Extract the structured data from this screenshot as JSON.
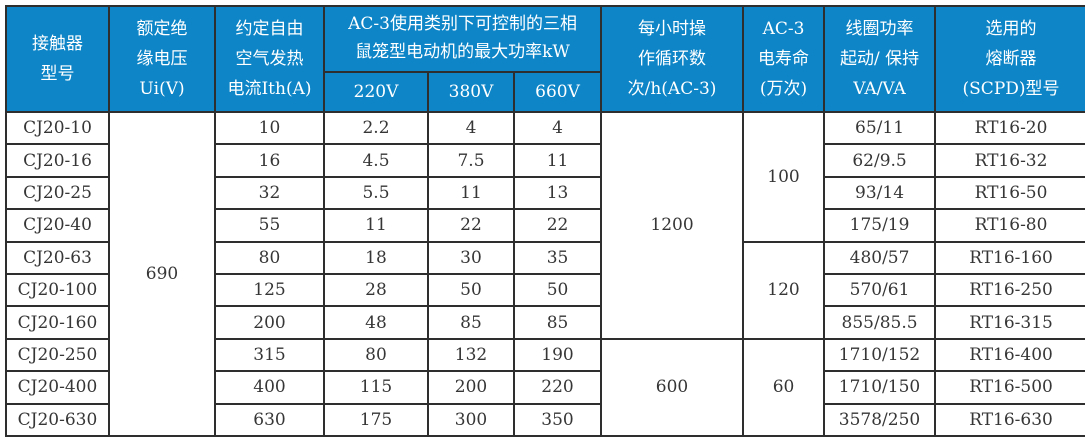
{
  "table": {
    "colors": {
      "header_bg": "#0d85c7",
      "header_text": "#ffffff",
      "body_text": "#363636",
      "border": "#2e2e2e"
    },
    "header": {
      "model": {
        "lines": [
          "接触器",
          "型号"
        ]
      },
      "ui_voltage": {
        "lines": [
          "额定绝",
          "缘电压",
          "Ui(V)"
        ]
      },
      "thermal_current": {
        "lines": [
          "约定自由",
          "空气发热",
          "电流Ith(A)"
        ]
      },
      "ac3_power_group": {
        "lines": [
          "AC-3使用类别下可控制的三相",
          "鼠笼型电动机的最大功率kW"
        ]
      },
      "voltages": [
        "220V",
        "380V",
        "660V"
      ],
      "cycles": {
        "lines": [
          "每小时操",
          "作循环数",
          "次/h(AC-3)"
        ]
      },
      "life": {
        "lines": [
          "AC-3",
          "电寿命",
          "(万次)"
        ]
      },
      "coil_power": {
        "lines": [
          "线圈功率",
          "起动/ 保持",
          "VA/VA"
        ]
      },
      "fuse": {
        "lines": [
          "选用的",
          "熔断器",
          "(SCPD)型号"
        ]
      }
    },
    "merged": {
      "ui_voltage_value": "690",
      "cycles_groups": [
        {
          "value": "1200",
          "row_span": 7
        },
        {
          "value": "600",
          "row_span": 3
        }
      ],
      "life_groups": [
        {
          "value": "100",
          "row_span": 4
        },
        {
          "value": "120",
          "row_span": 3
        },
        {
          "value": "60",
          "row_span": 3
        }
      ]
    },
    "rows": [
      {
        "model": "CJ20-10",
        "ith": "10",
        "kw_220v": "2.2",
        "kw_380v": "4",
        "kw_660v": "4",
        "coil_va": "65/11",
        "fuse": "RT16-20"
      },
      {
        "model": "CJ20-16",
        "ith": "16",
        "kw_220v": "4.5",
        "kw_380v": "7.5",
        "kw_660v": "11",
        "coil_va": "62/9.5",
        "fuse": "RT16-32"
      },
      {
        "model": "CJ20-25",
        "ith": "32",
        "kw_220v": "5.5",
        "kw_380v": "11",
        "kw_660v": "13",
        "coil_va": "93/14",
        "fuse": "RT16-50"
      },
      {
        "model": "CJ20-40",
        "ith": "55",
        "kw_220v": "11",
        "kw_380v": "22",
        "kw_660v": "22",
        "coil_va": "175/19",
        "fuse": "RT16-80"
      },
      {
        "model": "CJ20-63",
        "ith": "80",
        "kw_220v": "18",
        "kw_380v": "30",
        "kw_660v": "35",
        "coil_va": "480/57",
        "fuse": "RT16-160"
      },
      {
        "model": "CJ20-100",
        "ith": "125",
        "kw_220v": "28",
        "kw_380v": "50",
        "kw_660v": "50",
        "coil_va": "570/61",
        "fuse": "RT16-250"
      },
      {
        "model": "CJ20-160",
        "ith": "200",
        "kw_220v": "48",
        "kw_380v": "85",
        "kw_660v": "85",
        "coil_va": "855/85.5",
        "fuse": "RT16-315"
      },
      {
        "model": "CJ20-250",
        "ith": "315",
        "kw_220v": "80",
        "kw_380v": "132",
        "kw_660v": "190",
        "coil_va": "1710/152",
        "fuse": "RT16-400"
      },
      {
        "model": "CJ20-400",
        "ith": "400",
        "kw_220v": "115",
        "kw_380v": "200",
        "kw_660v": "220",
        "coil_va": "1710/150",
        "fuse": "RT16-500"
      },
      {
        "model": "CJ20-630",
        "ith": "630",
        "kw_220v": "175",
        "kw_380v": "300",
        "kw_660v": "350",
        "coil_va": "3578/250",
        "fuse": "RT16-630"
      }
    ]
  }
}
